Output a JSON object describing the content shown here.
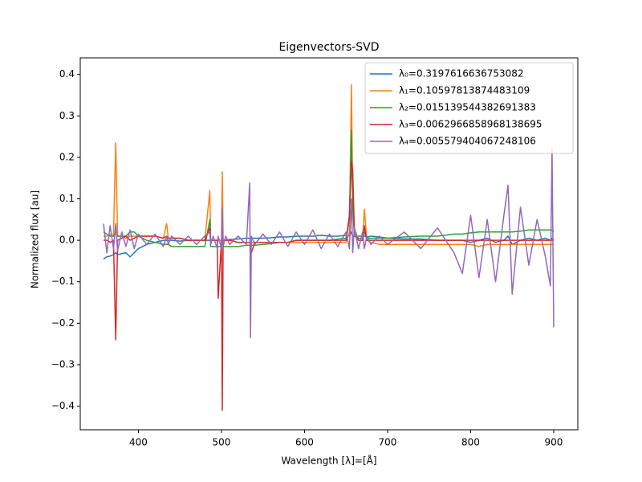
{
  "chart_data": {
    "type": "line",
    "title": "Eigenvectors-SVD",
    "xlabel": "Wavelength [λ]=[Å]",
    "ylabel": "Normalized flux [au]",
    "xlim": [
      330,
      929
    ],
    "ylim": [
      -0.457,
      0.44
    ],
    "xticks": [
      400,
      500,
      600,
      700,
      800,
      900
    ],
    "yticks": [
      {
        "value": -0.4,
        "label": "−0.4"
      },
      {
        "value": -0.3,
        "label": "−0.3"
      },
      {
        "value": -0.2,
        "label": "−0.2"
      },
      {
        "value": -0.1,
        "label": "−0.1"
      },
      {
        "value": 0,
        "label": "0.0"
      },
      0.1,
      0.2,
      0.3,
      0.4
    ],
    "grid": false,
    "legend": "upper right",
    "x": [
      358,
      362,
      366,
      370,
      372.7,
      375,
      380,
      385,
      390,
      395,
      400,
      410,
      420,
      430,
      434,
      436,
      440,
      450,
      460,
      470,
      480,
      486,
      487,
      490,
      495,
      496,
      500,
      501,
      502,
      505,
      510,
      520,
      530,
      534,
      535,
      536,
      540,
      550,
      560,
      570,
      580,
      590,
      600,
      610,
      620,
      630,
      640,
      650,
      654,
      656.5,
      658,
      660,
      665,
      670,
      672,
      675,
      680,
      690,
      700,
      720,
      740,
      760,
      780,
      790,
      800,
      810,
      820,
      830,
      840,
      845,
      850,
      860,
      870,
      880,
      890,
      896,
      898,
      900
    ],
    "series": [
      {
        "name": "λ₀=0.3197616636753082",
        "color": "#1f77b4",
        "values": [
          -0.045,
          -0.04,
          -0.038,
          -0.035,
          -0.03,
          -0.035,
          -0.032,
          -0.03,
          -0.04,
          -0.03,
          -0.02,
          -0.01,
          -0.005,
          0,
          0,
          0,
          0,
          -0.002,
          0,
          0,
          0,
          0,
          0,
          0,
          0,
          0,
          0,
          0,
          0,
          0,
          0.002,
          0.003,
          0.005,
          0.005,
          0.005,
          0.005,
          0.005,
          0.005,
          0.006,
          0.008,
          0.008,
          0.01,
          0.01,
          0.01,
          0.012,
          0.01,
          0.01,
          0.012,
          0.01,
          0.02,
          0.01,
          0.01,
          0.01,
          0.01,
          0.01,
          0.008,
          0.01,
          0.008,
          0.005,
          0.003,
          0.003,
          0,
          0,
          0,
          -0.005,
          0,
          0.005,
          -0.005,
          0,
          0.01,
          -0.01,
          0,
          0.005,
          0,
          0.005,
          0,
          0.005,
          0
        ]
      },
      {
        "name": "λ₁=0.10597813874483109",
        "color": "#ff7f0e",
        "values": [
          0.01,
          0.01,
          0.015,
          0.01,
          0.235,
          0.01,
          0.01,
          0.005,
          0.01,
          0.01,
          0.01,
          0.01,
          0.01,
          0.005,
          0.04,
          0.005,
          0.005,
          0.005,
          0,
          0,
          0,
          0.12,
          0,
          0,
          0,
          0,
          0,
          0.165,
          0,
          0,
          0,
          -0.005,
          -0.005,
          -0.005,
          -0.005,
          -0.005,
          -0.005,
          -0.005,
          -0.005,
          -0.005,
          -0.005,
          -0.005,
          -0.005,
          -0.005,
          -0.005,
          -0.005,
          -0.005,
          -0.005,
          0.02,
          0.375,
          0.1,
          0.03,
          0,
          0,
          0.075,
          0,
          -0.005,
          -0.01,
          -0.01,
          -0.01,
          -0.01,
          -0.01,
          -0.01,
          -0.01,
          -0.01,
          -0.015,
          -0.01,
          -0.01,
          -0.01,
          -0.01,
          -0.01,
          -0.01,
          -0.01,
          -0.01,
          -0.01,
          -0.01,
          -0.01,
          -0.01
        ]
      },
      {
        "name": "λ₂=0.015139544382691383",
        "color": "#2ca02c",
        "values": [
          0.02,
          0.015,
          0.01,
          0.01,
          0.02,
          0.01,
          0.01,
          0.01,
          0.02,
          0.02,
          0.01,
          0,
          -0.005,
          -0.01,
          -0.01,
          -0.01,
          -0.015,
          -0.015,
          -0.015,
          -0.015,
          -0.015,
          0.05,
          -0.015,
          -0.015,
          -0.015,
          -0.015,
          -0.015,
          0.04,
          -0.015,
          -0.015,
          -0.015,
          -0.015,
          -0.012,
          -0.012,
          -0.012,
          -0.012,
          -0.012,
          -0.01,
          -0.008,
          -0.005,
          -0.005,
          0,
          0,
          0,
          0,
          0,
          0.003,
          0.005,
          0.05,
          0.265,
          0.08,
          0.01,
          0.005,
          0.005,
          0.02,
          0.005,
          0.005,
          0.005,
          0.005,
          0.008,
          0.01,
          0.01,
          0.015,
          0.015,
          0.018,
          0.02,
          0.02,
          0.02,
          0.02,
          0.02,
          0.02,
          0.022,
          0.025,
          0.025,
          0.025,
          0.025,
          0.025,
          0.02
        ]
      },
      {
        "name": "λ₃=0.0062966858968138695",
        "color": "#d62728",
        "values": [
          0,
          0,
          -0.005,
          0,
          -0.24,
          0,
          0.005,
          0.01,
          0,
          0.005,
          0.01,
          0.01,
          0.01,
          0.005,
          0.01,
          0.005,
          0.005,
          0.005,
          0,
          0,
          0,
          0.03,
          0,
          0,
          0,
          -0.14,
          0,
          -0.41,
          0,
          0,
          0,
          -0.005,
          -0.005,
          -0.005,
          -0.005,
          -0.03,
          -0.005,
          -0.005,
          -0.005,
          -0.005,
          -0.005,
          0,
          0,
          0,
          0,
          0,
          0,
          0,
          0.06,
          0.19,
          0.17,
          0.02,
          0,
          0,
          0.035,
          0,
          0,
          0,
          0,
          0,
          0,
          0,
          0,
          0,
          0,
          0,
          0,
          0,
          0,
          0,
          0,
          0,
          0,
          0,
          0,
          0,
          0,
          0
        ]
      },
      {
        "name": "λ₄=0.005579404067248106",
        "color": "#9467bd",
        "values": [
          0.04,
          -0.03,
          0.035,
          -0.02,
          0.04,
          -0.025,
          0.02,
          -0.015,
          0.025,
          -0.02,
          0.015,
          -0.01,
          0.015,
          -0.015,
          0.01,
          -0.01,
          0.01,
          -0.01,
          0.01,
          -0.01,
          0.01,
          0.02,
          -0.01,
          0.01,
          -0.02,
          0.01,
          -0.02,
          0.08,
          -0.015,
          0.01,
          -0.01,
          0.01,
          -0.01,
          0.138,
          -0.235,
          0.01,
          -0.01,
          0.015,
          -0.01,
          0.02,
          -0.015,
          0.02,
          -0.01,
          0.025,
          -0.02,
          0.015,
          -0.015,
          0.02,
          -0.02,
          0.1,
          -0.03,
          0.03,
          -0.02,
          0.02,
          -0.02,
          0.01,
          -0.01,
          0.01,
          -0.01,
          0.02,
          -0.02,
          0.03,
          -0.03,
          -0.08,
          0.06,
          -0.09,
          0.05,
          -0.1,
          0.06,
          0.133,
          -0.13,
          0.08,
          -0.06,
          0.05,
          -0.04,
          -0.11,
          0.22,
          -0.21
        ]
      }
    ]
  }
}
